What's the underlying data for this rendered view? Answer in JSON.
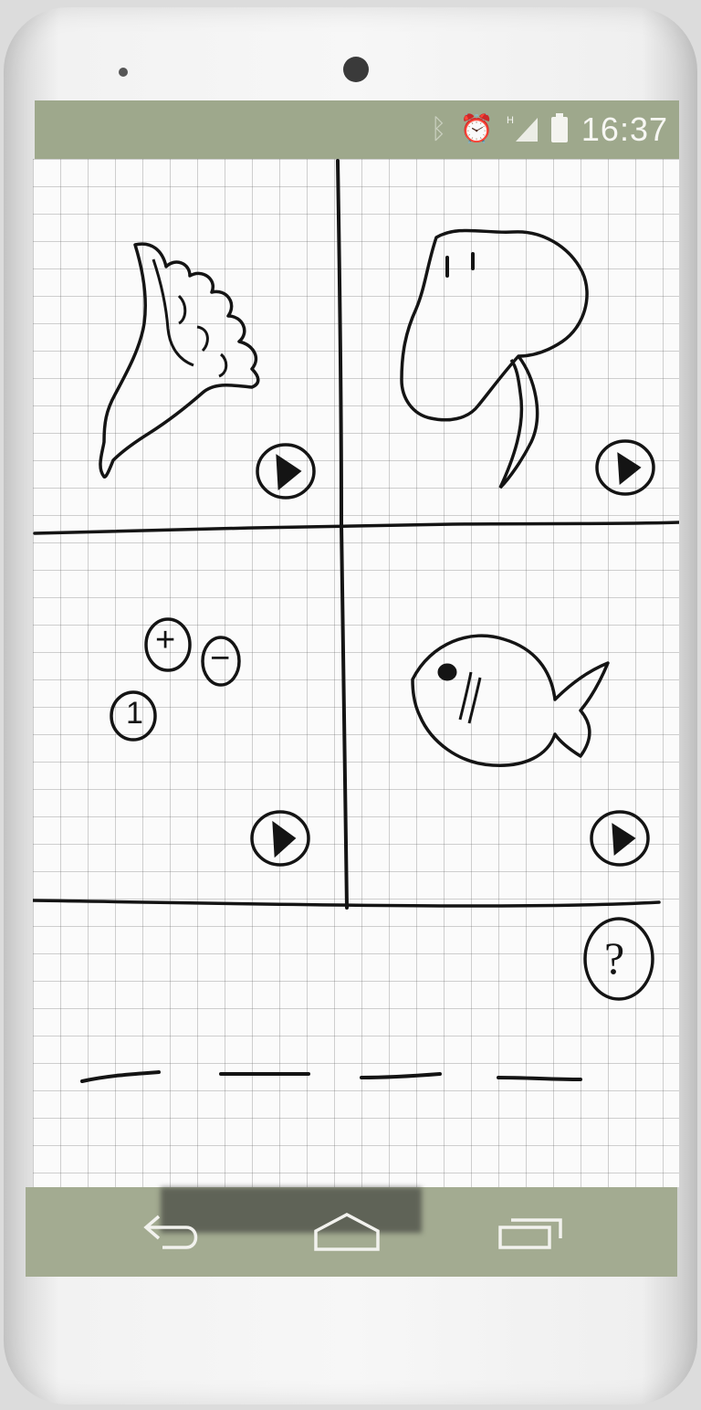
{
  "status_bar": {
    "time": "16:37",
    "icons": [
      "bluetooth-icon",
      "alarm-icon",
      "signal-h-icon",
      "battery-icon"
    ],
    "color": "#9ea88c"
  },
  "screen": {
    "tiles": [
      {
        "name": "lettuce",
        "drawing": "lettuce-drawing"
      },
      {
        "name": "beetroot",
        "drawing": "beetroot-drawing"
      },
      {
        "name": "number-keys",
        "keys": [
          "+",
          "−",
          "1"
        ]
      },
      {
        "name": "fish",
        "drawing": "fish-drawing"
      }
    ],
    "answer_slots": 4,
    "help_label": "?"
  },
  "nav_bar": {
    "buttons": [
      "back-icon",
      "home-icon",
      "recents-icon"
    ],
    "color": "#a3ab91"
  }
}
